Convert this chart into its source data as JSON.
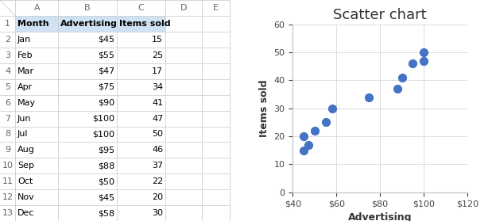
{
  "advertising": [
    45,
    55,
    47,
    75,
    90,
    100,
    100,
    95,
    88,
    50,
    45,
    58
  ],
  "items_sold": [
    15,
    25,
    17,
    34,
    41,
    47,
    50,
    46,
    37,
    22,
    20,
    30
  ],
  "title": "Scatter chart",
  "xlabel": "Advertising",
  "ylabel": "Items sold",
  "xlim": [
    40,
    120
  ],
  "ylim": [
    0,
    60
  ],
  "xticks": [
    40,
    60,
    80,
    100,
    120
  ],
  "yticks": [
    0,
    10,
    20,
    30,
    40,
    50,
    60
  ],
  "dot_color": "#4472C4",
  "dot_size": 50,
  "title_fontsize": 13,
  "label_fontsize": 9,
  "tick_fontsize": 8,
  "col_letters": [
    "A",
    "B",
    "C",
    "D",
    "E"
  ],
  "headers": [
    "Month",
    "Advertising",
    "Items sold"
  ],
  "rows": [
    [
      "Jan",
      "$45",
      "15"
    ],
    [
      "Feb",
      "$55",
      "25"
    ],
    [
      "Mar",
      "$47",
      "17"
    ],
    [
      "Apr",
      "$75",
      "34"
    ],
    [
      "May",
      "$90",
      "41"
    ],
    [
      "Jun",
      "$100",
      "47"
    ],
    [
      "Jul",
      "$100",
      "50"
    ],
    [
      "Aug",
      "$95",
      "46"
    ],
    [
      "Sep",
      "$88",
      "37"
    ],
    [
      "Oct",
      "$50",
      "22"
    ],
    [
      "Nov",
      "$45",
      "20"
    ],
    [
      "Dec",
      "$58",
      "30"
    ]
  ],
  "header_bg": "#CFE2F3",
  "grid_color": "#D0D0D0",
  "row_num_color": "#666666",
  "col_letter_color": "#666666",
  "header_text_color": "#000000",
  "cell_text_color": "#000000",
  "spine_color": "#BFBFBF"
}
